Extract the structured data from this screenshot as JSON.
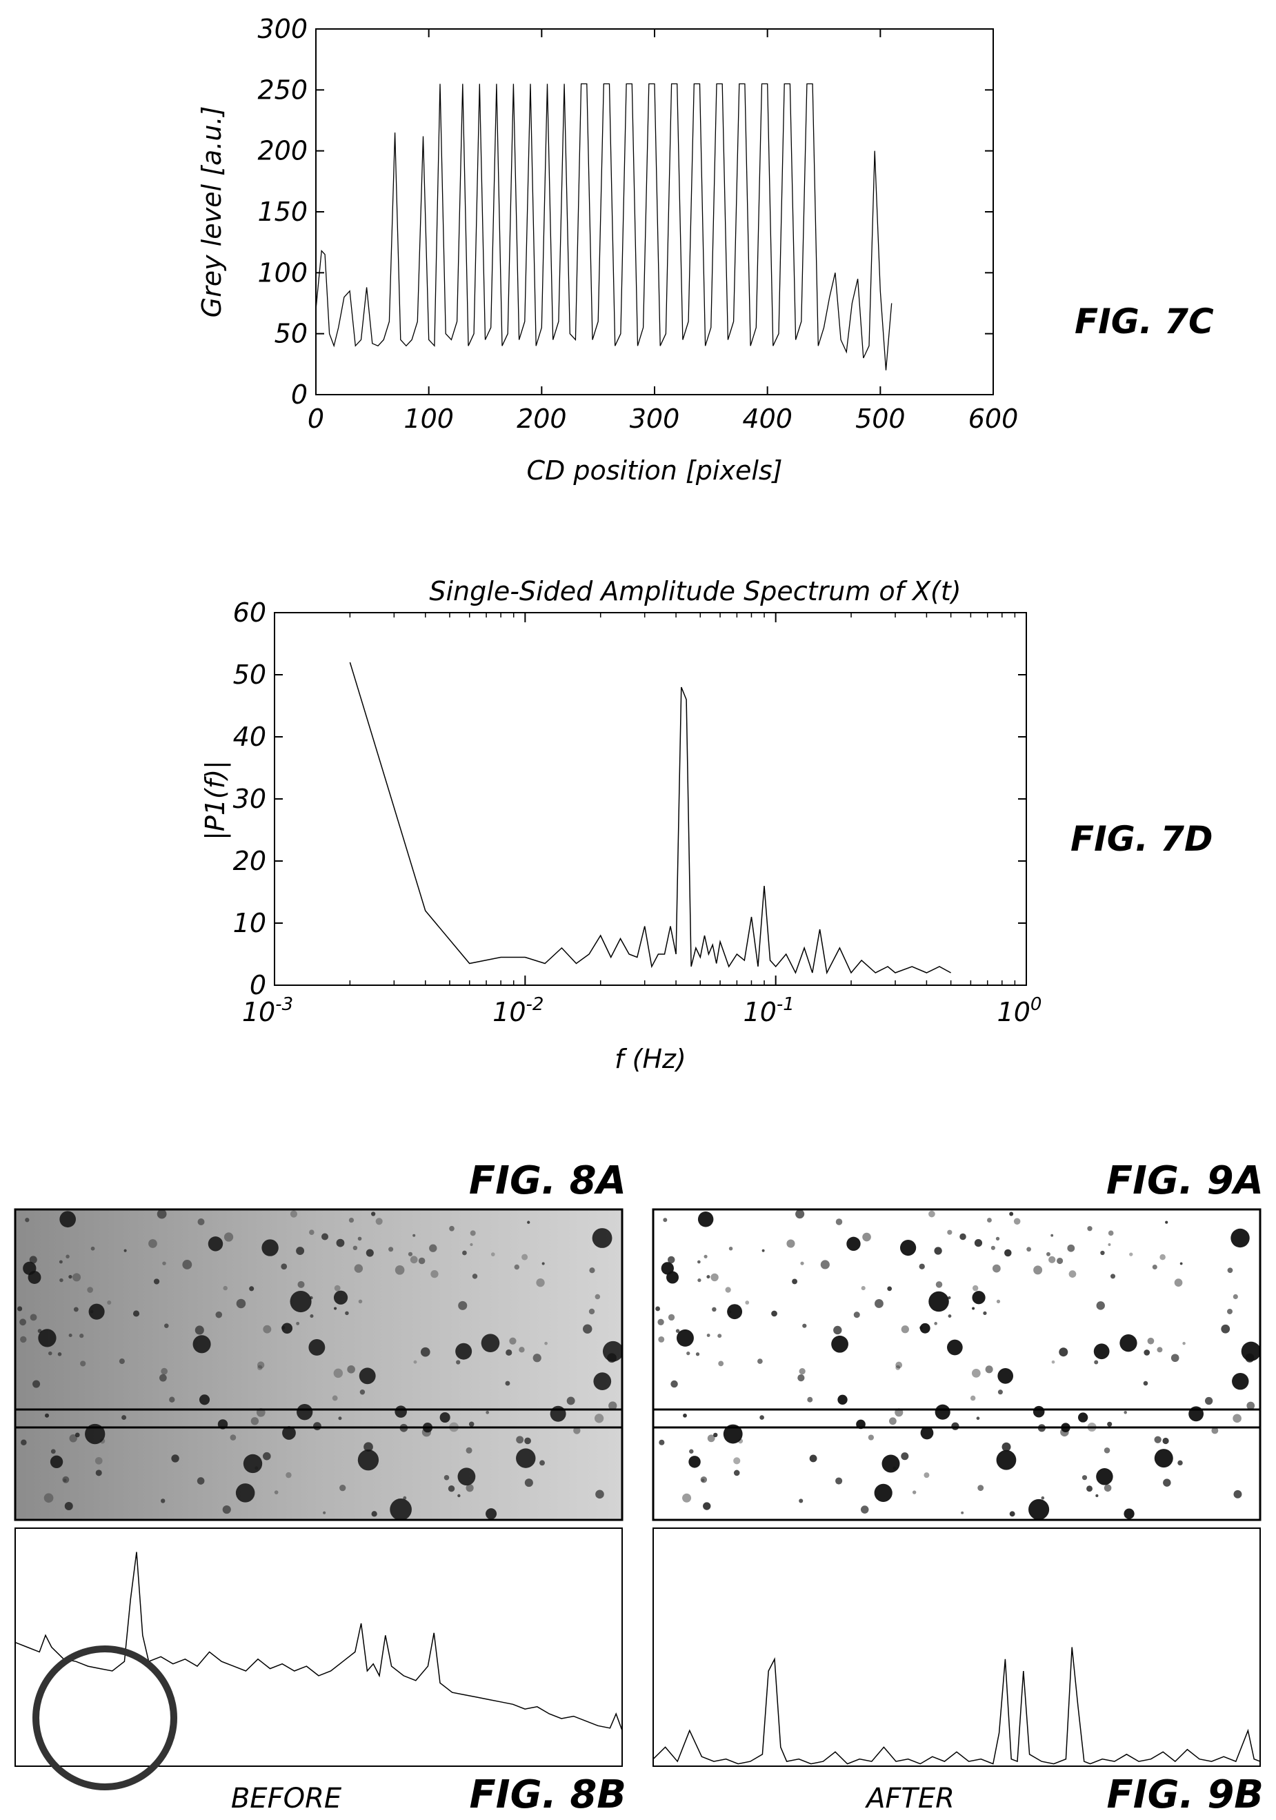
{
  "figures": {
    "fig7c": "FIG. 7C",
    "fig7d": "FIG. 7D",
    "fig8a": "FIG. 8A",
    "fig9a": "FIG. 9A",
    "fig8b": "FIG. 8B",
    "fig9b": "FIG. 9B"
  },
  "captions": {
    "before": "BEFORE",
    "after": "AFTER"
  },
  "chart_data": [
    {
      "id": "fig7c",
      "type": "line",
      "title": "",
      "xlabel": "CD position [pixels]",
      "ylabel": "Grey level [a.u.]",
      "xlim": [
        0,
        600
      ],
      "ylim": [
        0,
        300
      ],
      "xticks": [
        0,
        100,
        200,
        300,
        400,
        500,
        600
      ],
      "yticks": [
        0,
        50,
        100,
        150,
        200,
        250,
        300
      ],
      "x": [
        0,
        5,
        8,
        12,
        16,
        20,
        25,
        30,
        35,
        40,
        45,
        50,
        55,
        60,
        65,
        70,
        75,
        80,
        85,
        90,
        95,
        100,
        105,
        110,
        115,
        120,
        125,
        130,
        135,
        140,
        145,
        150,
        155,
        160,
        165,
        170,
        175,
        180,
        185,
        190,
        195,
        200,
        205,
        210,
        215,
        220,
        225,
        230,
        235,
        240,
        245,
        250,
        255,
        260,
        265,
        270,
        275,
        280,
        285,
        290,
        295,
        300,
        305,
        310,
        315,
        320,
        325,
        330,
        335,
        340,
        345,
        350,
        355,
        360,
        365,
        370,
        375,
        380,
        385,
        390,
        395,
        400,
        405,
        410,
        415,
        420,
        425,
        430,
        435,
        440,
        445,
        450,
        455,
        460,
        465,
        470,
        475,
        480,
        485,
        490,
        495,
        500,
        505,
        510
      ],
      "y": [
        70,
        118,
        115,
        50,
        40,
        55,
        80,
        85,
        40,
        45,
        88,
        42,
        40,
        45,
        60,
        215,
        45,
        40,
        45,
        60,
        212,
        45,
        40,
        255,
        50,
        45,
        60,
        255,
        40,
        50,
        255,
        45,
        55,
        255,
        40,
        50,
        255,
        45,
        60,
        255,
        40,
        55,
        255,
        45,
        60,
        255,
        50,
        45,
        255,
        255,
        45,
        60,
        255,
        255,
        40,
        50,
        255,
        255,
        40,
        55,
        255,
        255,
        40,
        50,
        255,
        255,
        45,
        60,
        255,
        255,
        40,
        55,
        255,
        255,
        45,
        60,
        255,
        255,
        40,
        55,
        255,
        255,
        40,
        50,
        255,
        255,
        45,
        60,
        255,
        255,
        40,
        55,
        80,
        100,
        45,
        35,
        75,
        95,
        30,
        40,
        200,
        85,
        20,
        75
      ]
    },
    {
      "id": "fig7d",
      "type": "line",
      "title": "Single-Sided Amplitude Spectrum of X(t)",
      "xlabel": "f (Hz)",
      "ylabel": "|P1(f)|",
      "xscale": "log",
      "xlim": [
        0.001,
        1
      ],
      "ylim": [
        0,
        60
      ],
      "xticks": [
        "10-3",
        "10-2",
        "10-1",
        "100"
      ],
      "yticks": [
        0,
        10,
        20,
        30,
        40,
        50,
        60
      ],
      "x": [
        0.002,
        0.004,
        0.006,
        0.008,
        0.01,
        0.012,
        0.014,
        0.016,
        0.018,
        0.02,
        0.022,
        0.024,
        0.026,
        0.028,
        0.03,
        0.032,
        0.034,
        0.036,
        0.038,
        0.04,
        0.042,
        0.044,
        0.046,
        0.048,
        0.05,
        0.052,
        0.054,
        0.056,
        0.058,
        0.06,
        0.065,
        0.07,
        0.075,
        0.08,
        0.085,
        0.09,
        0.095,
        0.1,
        0.11,
        0.12,
        0.13,
        0.14,
        0.15,
        0.16,
        0.18,
        0.2,
        0.22,
        0.25,
        0.28,
        0.3,
        0.35,
        0.4,
        0.45,
        0.5
      ],
      "y": [
        52,
        12,
        3.5,
        4.5,
        4.5,
        3.5,
        6,
        3.5,
        5,
        8,
        4.5,
        7.5,
        5,
        4.5,
        9.5,
        3,
        5,
        5,
        9.5,
        5,
        48,
        46,
        3,
        6,
        4.5,
        8,
        5,
        6.5,
        3.5,
        7,
        3,
        5,
        4,
        11,
        3,
        16,
        4,
        3,
        5,
        2,
        6,
        2,
        9,
        2,
        6,
        2,
        4,
        2,
        3,
        2,
        3,
        2,
        3,
        2
      ]
    },
    {
      "id": "fig8b",
      "type": "line",
      "title": "",
      "xlabel": "",
      "ylabel": "",
      "xlim": [
        0,
        100
      ],
      "ylim": [
        0,
        100
      ],
      "x": [
        0,
        2,
        4,
        5,
        6,
        8,
        10,
        12,
        14,
        16,
        18,
        19,
        20,
        21,
        22,
        24,
        26,
        28,
        30,
        32,
        34,
        36,
        38,
        40,
        42,
        44,
        46,
        48,
        50,
        52,
        54,
        56,
        57,
        58,
        59,
        60,
        61,
        62,
        64,
        66,
        68,
        69,
        70,
        71,
        72,
        74,
        76,
        78,
        80,
        82,
        84,
        86,
        88,
        90,
        92,
        94,
        96,
        98,
        99,
        100
      ],
      "y": [
        52,
        50,
        48,
        55,
        50,
        45,
        44,
        42,
        41,
        40,
        44,
        70,
        90,
        55,
        44,
        46,
        43,
        45,
        42,
        48,
        44,
        42,
        40,
        45,
        41,
        43,
        40,
        42,
        38,
        40,
        44,
        48,
        60,
        40,
        43,
        38,
        55,
        42,
        38,
        36,
        42,
        56,
        35,
        33,
        31,
        30,
        29,
        28,
        27,
        26,
        24,
        25,
        22,
        20,
        21,
        19,
        17,
        16,
        22,
        15
      ]
    },
    {
      "id": "fig9b",
      "type": "line",
      "title": "",
      "xlabel": "",
      "ylabel": "",
      "xlim": [
        0,
        100
      ],
      "ylim": [
        0,
        100
      ],
      "x": [
        0,
        2,
        4,
        6,
        8,
        10,
        12,
        14,
        16,
        18,
        19,
        20,
        21,
        22,
        24,
        26,
        28,
        30,
        32,
        34,
        36,
        38,
        40,
        42,
        44,
        46,
        48,
        50,
        52,
        54,
        56,
        57,
        58,
        59,
        60,
        61,
        62,
        64,
        66,
        68,
        69,
        70,
        71,
        72,
        74,
        76,
        78,
        80,
        82,
        84,
        86,
        88,
        90,
        92,
        94,
        96,
        98,
        99,
        100
      ],
      "y": [
        3,
        8,
        2,
        15,
        4,
        2,
        3,
        1,
        2,
        5,
        40,
        45,
        8,
        2,
        3,
        1,
        2,
        6,
        1,
        3,
        2,
        8,
        2,
        3,
        1,
        4,
        2,
        6,
        2,
        3,
        1,
        14,
        45,
        3,
        2,
        40,
        5,
        2,
        1,
        3,
        50,
        25,
        2,
        1,
        3,
        2,
        5,
        2,
        3,
        6,
        2,
        7,
        3,
        2,
        4,
        2,
        15,
        3,
        2
      ]
    }
  ],
  "panels": {
    "fig8a": {
      "type": "image",
      "description_visible": ""
    },
    "fig9a": {
      "type": "image",
      "description_visible": ""
    }
  }
}
